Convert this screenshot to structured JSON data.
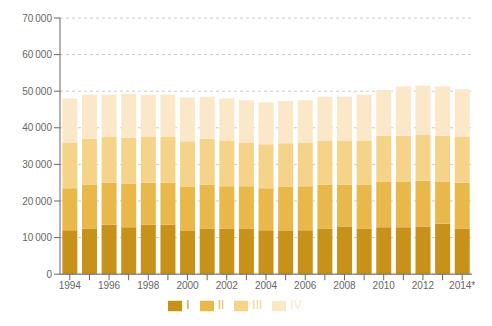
{
  "chart_data": {
    "type": "bar",
    "stacked": true,
    "grid": true,
    "legend": "bottom",
    "categories": [
      "1994",
      null,
      "1996",
      null,
      "1998",
      null,
      "2000",
      null,
      "2002",
      null,
      "2004",
      null,
      "2006",
      null,
      "2008",
      null,
      "2010",
      null,
      "2012",
      null,
      "2014*"
    ],
    "series": [
      {
        "name": "I",
        "color": "#C8921A",
        "values": [
          12000,
          12500,
          13500,
          12800,
          13500,
          13500,
          11800,
          12500,
          12500,
          12500,
          12000,
          11800,
          12000,
          12500,
          13000,
          12500,
          12800,
          12800,
          13000,
          13800,
          12500
        ]
      },
      {
        "name": "II",
        "color": "#E8B84B",
        "values": [
          11500,
          12000,
          11500,
          12000,
          11500,
          11500,
          12000,
          12000,
          11500,
          11500,
          11500,
          12000,
          12000,
          12000,
          11500,
          12000,
          12500,
          12500,
          12500,
          11500,
          12500
        ]
      },
      {
        "name": "III",
        "color": "#F5D48A",
        "values": [
          12500,
          12500,
          12500,
          12500,
          12500,
          12500,
          12500,
          12500,
          12500,
          12000,
          12000,
          12000,
          12000,
          12000,
          12000,
          12000,
          12500,
          12500,
          12500,
          12500,
          12500
        ]
      },
      {
        "name": "IV",
        "color": "#FAE8C8",
        "values": [
          12000,
          12000,
          11500,
          12000,
          11500,
          11500,
          12000,
          11500,
          11500,
          11500,
          11500,
          11500,
          11500,
          12000,
          12000,
          12500,
          12500,
          13500,
          13500,
          13500,
          13000
        ]
      }
    ],
    "ylim": [
      0,
      70000
    ],
    "yticks": [
      0,
      {
        "value": 10000,
        "label": "10 000"
      },
      {
        "value": 20000,
        "label": "20 000"
      },
      {
        "value": 30000,
        "label": "30 000"
      },
      {
        "value": 40000,
        "label": "40 000"
      },
      {
        "value": 50000,
        "label": "50 000"
      },
      {
        "value": 60000,
        "label": "60 000"
      },
      {
        "value": 70000,
        "label": "70 000"
      }
    ]
  }
}
